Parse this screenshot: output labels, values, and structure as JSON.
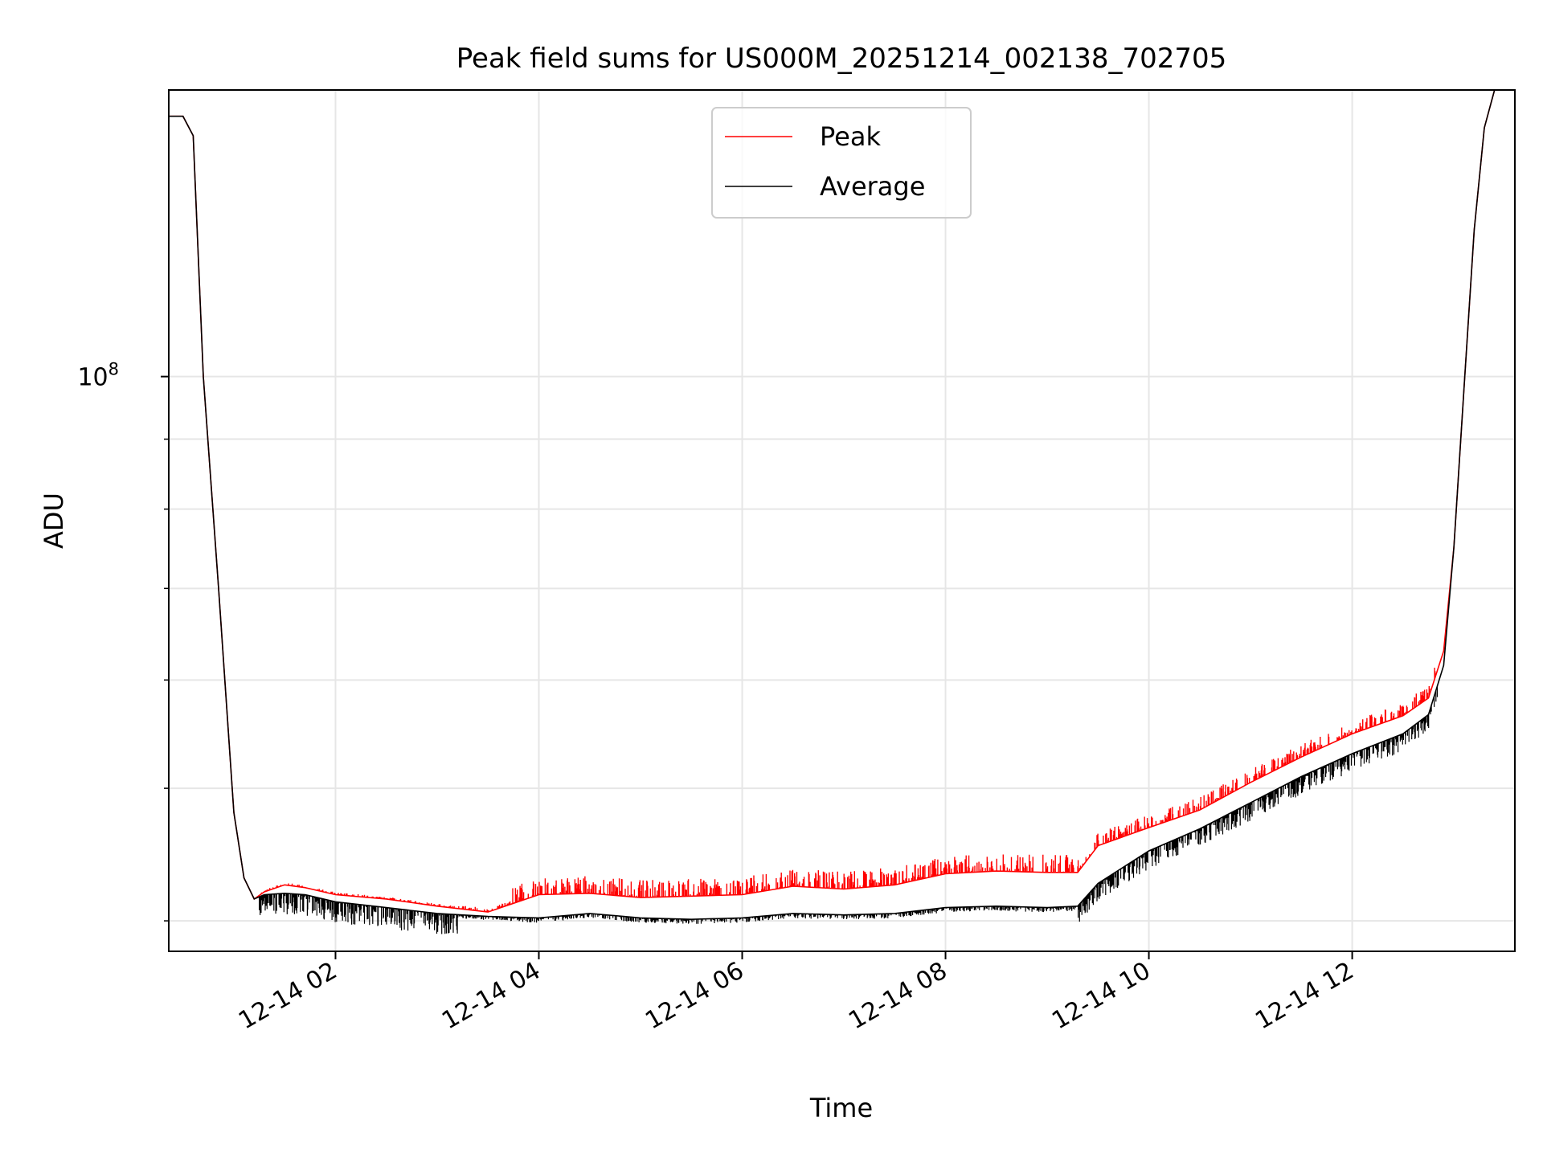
{
  "chart_data": {
    "type": "line",
    "title": "Peak field sums for US000M_20251214_002138_702705",
    "xlabel": "Time",
    "ylabel": "ADU",
    "yscale": "log",
    "grid": true,
    "legend_position": "upper center",
    "x_unit": "hours since 2025-12-14 00:00",
    "xlim": [
      0.36,
      13.6
    ],
    "ylim": [
      38000000,
      162000000
    ],
    "xticks": [
      {
        "value": 2,
        "label": "12-14 02"
      },
      {
        "value": 4,
        "label": "12-14 04"
      },
      {
        "value": 6,
        "label": "12-14 06"
      },
      {
        "value": 8,
        "label": "12-14 08"
      },
      {
        "value": 10,
        "label": "12-14 10"
      },
      {
        "value": 12,
        "label": "12-14 12"
      }
    ],
    "ytick_major": {
      "value": 100000000,
      "base": "10",
      "exponent": "8"
    },
    "yminor_ticks": [
      40000000,
      50000000,
      60000000,
      70000000,
      80000000,
      90000000,
      200000000
    ],
    "series": [
      {
        "name": "Peak",
        "color": "#ff0000",
        "x": [
          0.36,
          0.5,
          0.6,
          0.7,
          0.85,
          1.0,
          1.1,
          1.2,
          1.3,
          1.5,
          1.7,
          2.0,
          2.5,
          3.0,
          3.5,
          4.0,
          4.5,
          5.0,
          5.5,
          6.0,
          6.5,
          7.0,
          7.5,
          8.0,
          8.5,
          9.0,
          9.3,
          9.5,
          10.0,
          10.5,
          11.0,
          11.5,
          12.0,
          12.5,
          12.75,
          12.9,
          13.0,
          13.1,
          13.2,
          13.3,
          13.4,
          13.6
        ],
        "y": [
          155000000,
          155000000,
          150000000,
          100000000,
          70000000,
          48000000,
          43000000,
          41500000,
          42000000,
          42500000,
          42300000,
          41800000,
          41500000,
          41000000,
          40600000,
          41800000,
          41900000,
          41600000,
          41700000,
          41800000,
          42400000,
          42200000,
          42500000,
          43300000,
          43500000,
          43400000,
          43400000,
          45400000,
          46800000,
          48200000,
          50500000,
          52700000,
          54800000,
          56500000,
          58200000,
          63000000,
          75000000,
          98000000,
          128000000,
          152000000,
          162000000,
          162000000
        ]
      },
      {
        "name": "Average",
        "color": "#000000",
        "x": [
          0.36,
          0.5,
          0.6,
          0.7,
          0.85,
          1.0,
          1.1,
          1.2,
          1.3,
          1.5,
          1.7,
          2.0,
          2.5,
          3.0,
          3.5,
          4.0,
          4.5,
          5.0,
          5.5,
          6.0,
          6.5,
          7.0,
          7.5,
          8.0,
          8.5,
          9.0,
          9.3,
          9.5,
          10.0,
          10.5,
          11.0,
          11.5,
          12.0,
          12.5,
          12.75,
          12.9,
          13.0,
          13.1,
          13.2,
          13.3,
          13.4,
          13.6
        ],
        "y": [
          155000000,
          155000000,
          150000000,
          100000000,
          70000000,
          48000000,
          43000000,
          41500000,
          41800000,
          41900000,
          41800000,
          41300000,
          40900000,
          40500000,
          40300000,
          40200000,
          40500000,
          40200000,
          40100000,
          40200000,
          40500000,
          40400000,
          40500000,
          40900000,
          41000000,
          40900000,
          41000000,
          42600000,
          45000000,
          46700000,
          48800000,
          51000000,
          53000000,
          54800000,
          56600000,
          61500000,
          75000000,
          98000000,
          128000000,
          152000000,
          162000000,
          162000000
        ]
      }
    ]
  }
}
